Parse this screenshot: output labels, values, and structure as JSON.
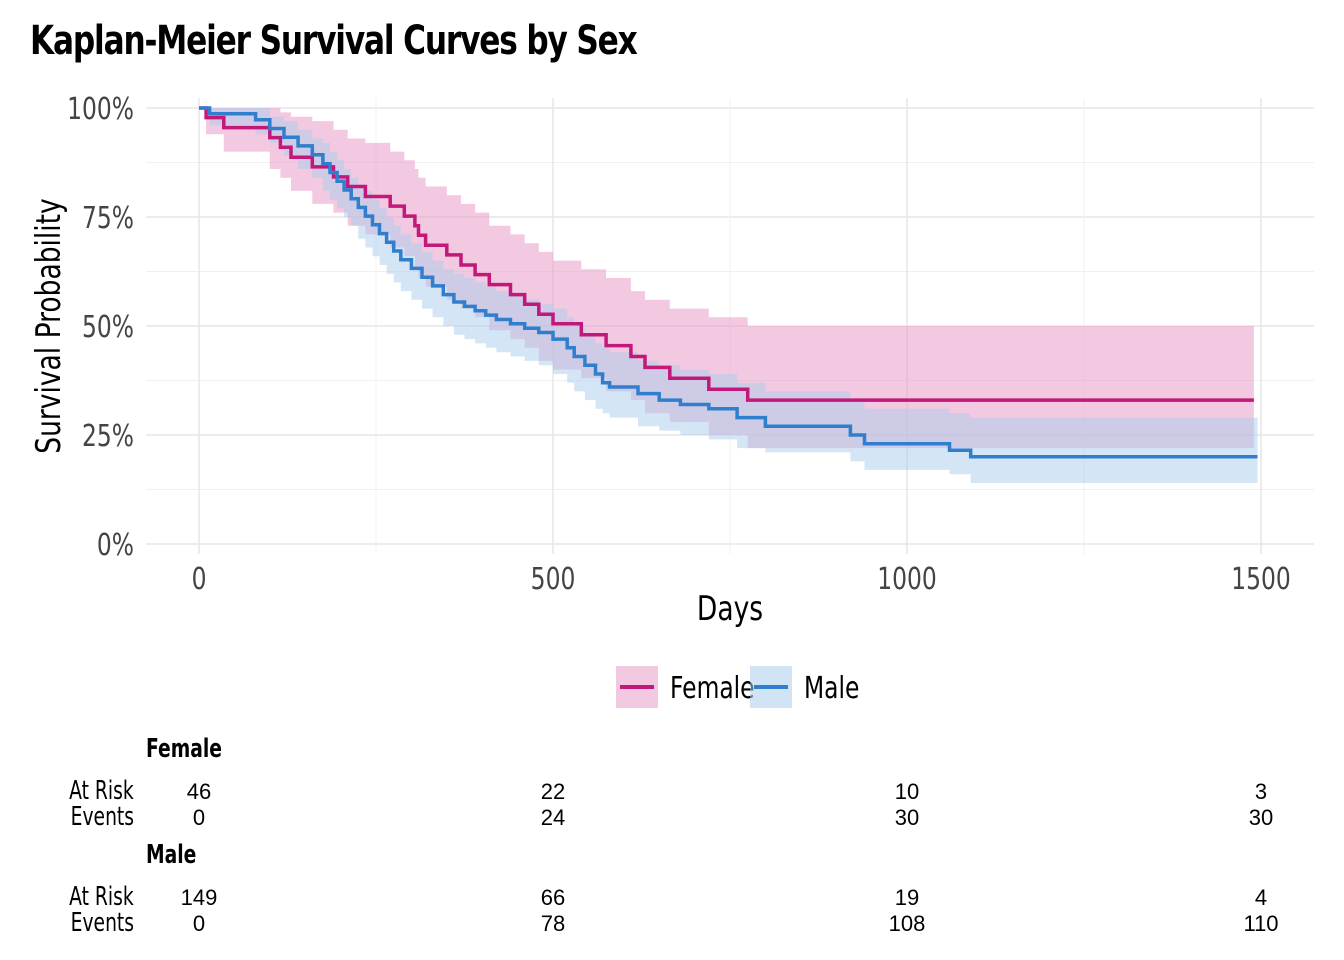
{
  "title": "Kaplan-Meier Survival Curves by Sex",
  "colors": {
    "female": "#c2187a",
    "male": "#2f7fce",
    "female_ci": "#e89cc8",
    "male_ci": "#a9cdec",
    "grid": "#e6e6e6"
  },
  "chart_data": {
    "type": "line",
    "subtype": "kaplan-meier step curves with confidence bands",
    "xlabel": "Days",
    "ylabel": "Survival Probability",
    "xlim": [
      0,
      1500
    ],
    "ylim": [
      0,
      1
    ],
    "x_ticks": [
      "0",
      "500",
      "1000",
      "1500"
    ],
    "y_ticks": [
      "0%",
      "25%",
      "50%",
      "75%",
      "100%"
    ],
    "legend": {
      "position": "bottom",
      "entries": [
        "Female",
        "Male"
      ]
    },
    "series": [
      {
        "name": "Female",
        "color": "#c2187a",
        "x": [
          0,
          10,
          35,
          100,
          115,
          130,
          160,
          190,
          210,
          235,
          270,
          290,
          305,
          310,
          320,
          350,
          370,
          390,
          410,
          440,
          460,
          480,
          500,
          540,
          575,
          610,
          630,
          665,
          720,
          775,
          1490
        ],
        "y": [
          1.0,
          0.978,
          0.955,
          0.932,
          0.91,
          0.887,
          0.865,
          0.842,
          0.82,
          0.797,
          0.775,
          0.752,
          0.73,
          0.708,
          0.685,
          0.663,
          0.64,
          0.618,
          0.595,
          0.572,
          0.55,
          0.527,
          0.505,
          0.48,
          0.455,
          0.43,
          0.405,
          0.38,
          0.355,
          0.33,
          0.33
        ],
        "lower": [
          1.0,
          0.94,
          0.9,
          0.86,
          0.84,
          0.81,
          0.78,
          0.76,
          0.73,
          0.71,
          0.68,
          0.66,
          0.63,
          0.61,
          0.59,
          0.56,
          0.54,
          0.52,
          0.49,
          0.47,
          0.45,
          0.42,
          0.4,
          0.38,
          0.35,
          0.33,
          0.3,
          0.28,
          0.25,
          0.22,
          0.22
        ],
        "upper": [
          1.0,
          1.0,
          1.0,
          1.0,
          0.99,
          0.98,
          0.97,
          0.95,
          0.93,
          0.92,
          0.9,
          0.88,
          0.86,
          0.84,
          0.82,
          0.8,
          0.78,
          0.76,
          0.73,
          0.71,
          0.69,
          0.67,
          0.65,
          0.63,
          0.61,
          0.58,
          0.56,
          0.54,
          0.52,
          0.5,
          0.5
        ]
      },
      {
        "name": "Male",
        "color": "#2f7fce",
        "x": [
          0,
          15,
          80,
          100,
          120,
          140,
          160,
          175,
          185,
          195,
          205,
          215,
          225,
          235,
          245,
          255,
          265,
          275,
          285,
          300,
          315,
          330,
          345,
          360,
          375,
          390,
          405,
          420,
          440,
          460,
          480,
          500,
          520,
          530,
          545,
          560,
          570,
          580,
          620,
          650,
          680,
          720,
          760,
          800,
          920,
          940,
          1060,
          1090,
          1495
        ],
        "y": [
          1.0,
          0.987,
          0.973,
          0.953,
          0.933,
          0.913,
          0.893,
          0.872,
          0.852,
          0.832,
          0.812,
          0.792,
          0.772,
          0.752,
          0.732,
          0.712,
          0.692,
          0.672,
          0.652,
          0.632,
          0.612,
          0.592,
          0.572,
          0.555,
          0.545,
          0.535,
          0.525,
          0.515,
          0.505,
          0.495,
          0.485,
          0.47,
          0.45,
          0.43,
          0.41,
          0.39,
          0.37,
          0.36,
          0.345,
          0.33,
          0.32,
          0.31,
          0.29,
          0.27,
          0.25,
          0.23,
          0.215,
          0.2,
          0.2
        ],
        "lower": [
          1.0,
          0.96,
          0.94,
          0.92,
          0.89,
          0.86,
          0.84,
          0.81,
          0.79,
          0.77,
          0.75,
          0.73,
          0.7,
          0.68,
          0.66,
          0.64,
          0.62,
          0.6,
          0.58,
          0.56,
          0.54,
          0.52,
          0.5,
          0.48,
          0.47,
          0.46,
          0.45,
          0.44,
          0.43,
          0.42,
          0.41,
          0.39,
          0.37,
          0.35,
          0.33,
          0.31,
          0.3,
          0.29,
          0.27,
          0.26,
          0.25,
          0.24,
          0.22,
          0.21,
          0.19,
          0.17,
          0.16,
          0.14,
          0.14
        ],
        "upper": [
          1.0,
          1.0,
          1.0,
          0.98,
          0.97,
          0.95,
          0.93,
          0.92,
          0.9,
          0.88,
          0.86,
          0.84,
          0.82,
          0.81,
          0.79,
          0.77,
          0.75,
          0.73,
          0.71,
          0.69,
          0.67,
          0.65,
          0.63,
          0.62,
          0.61,
          0.6,
          0.59,
          0.58,
          0.57,
          0.56,
          0.55,
          0.54,
          0.52,
          0.5,
          0.48,
          0.46,
          0.45,
          0.44,
          0.42,
          0.41,
          0.4,
          0.39,
          0.37,
          0.35,
          0.33,
          0.31,
          0.3,
          0.29,
          0.29
        ]
      }
    ],
    "risk_table": {
      "times": [
        0,
        500,
        1000,
        1500
      ],
      "row_labels": [
        "At Risk",
        "Events"
      ],
      "groups": [
        {
          "name": "Female",
          "at_risk": [
            "46",
            "22",
            "10",
            "3"
          ],
          "events": [
            "0",
            "24",
            "30",
            "30"
          ]
        },
        {
          "name": "Male",
          "at_risk": [
            "149",
            "66",
            "19",
            "4"
          ],
          "events": [
            "0",
            "78",
            "108",
            "110"
          ]
        }
      ]
    }
  }
}
